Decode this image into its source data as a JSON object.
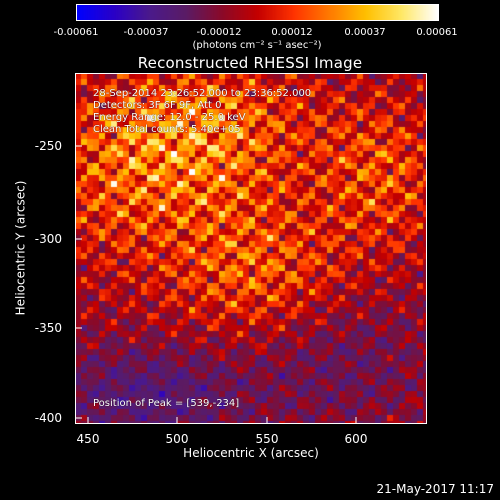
{
  "colorbar": {
    "tick_labels": [
      "-0.00061",
      "-0.00037",
      "-0.00012",
      "0.00012",
      "0.00037",
      "0.00061"
    ],
    "units": "(photons cm⁻² s⁻¹ asec⁻²)",
    "colormap": [
      "#0000ff",
      "#2a00c8",
      "#4b1a8c",
      "#5a1c66",
      "#8a0a2a",
      "#c40000",
      "#ff3300",
      "#ff7a00",
      "#ffc000",
      "#ffe866",
      "#ffffff"
    ],
    "range": [
      -0.00061,
      0.00061
    ]
  },
  "image": {
    "title": "Reconstructed RHESSI Image",
    "info": {
      "time_range": "28-Sep-2014 23:26:52.000 to 23:36:52.000",
      "detectors": "Detectors: 3F 6F 9F, Att 0",
      "energy": "Energy Range: 12.0 - 25.0 keV",
      "algorithm": "Clean    Total counts: 5.40e+05"
    },
    "peak": "Position of Peak = [539,-234]"
  },
  "axes": {
    "x_label": "Heliocentric X (arcsec)",
    "y_label": "Heliocentric Y (arcsec)",
    "x_ticks": [
      "450",
      "500",
      "550",
      "600"
    ],
    "y_ticks": [
      "-250",
      "-300",
      "-350",
      "-400"
    ],
    "x_range": [
      443,
      640
    ],
    "y_range": [
      -404,
      -208
    ]
  },
  "footer": {
    "timestamp": "21-May-2017 11:17"
  }
}
